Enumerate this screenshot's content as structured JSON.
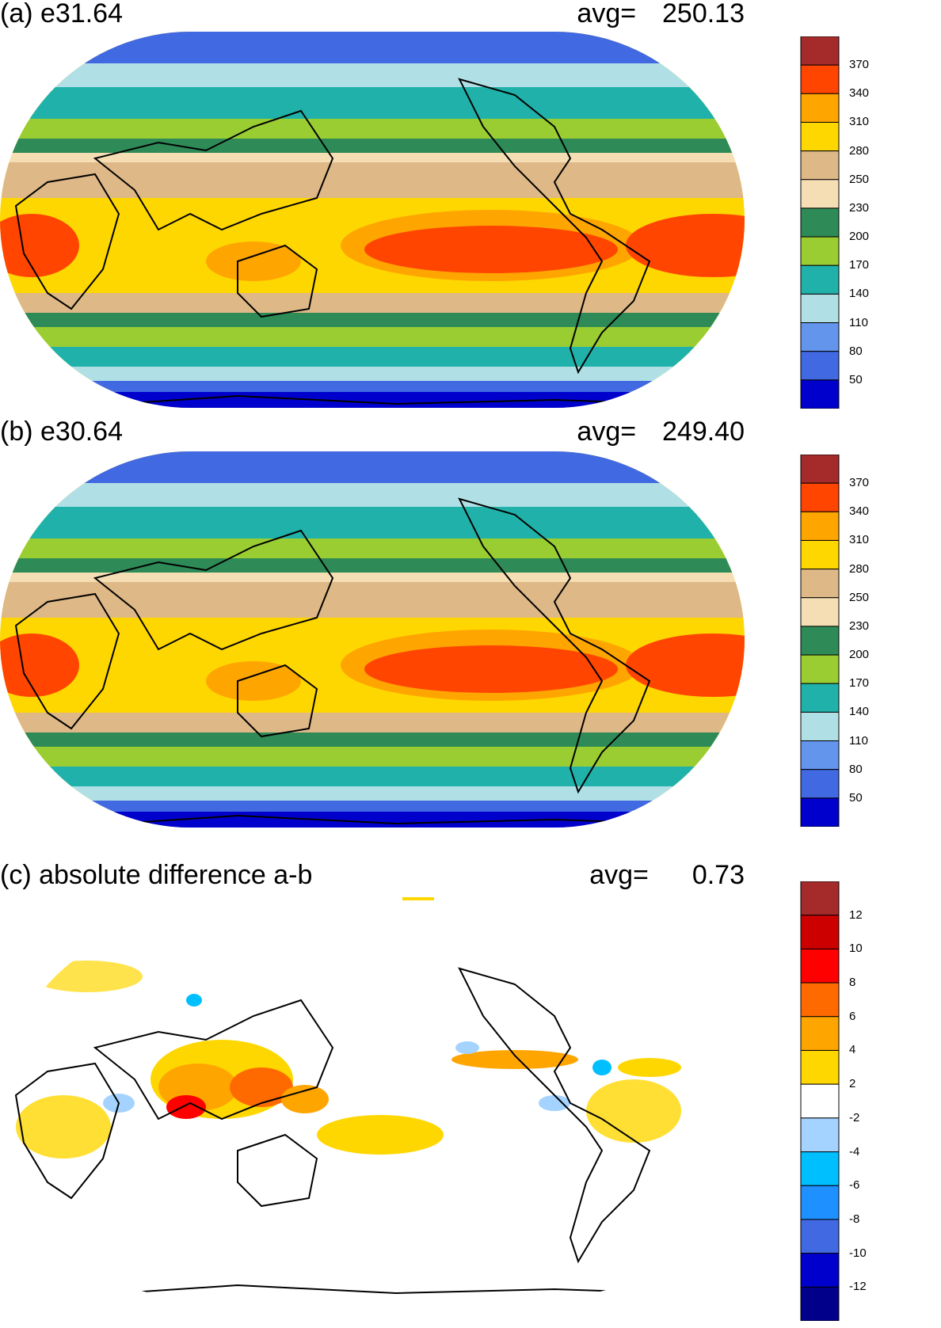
{
  "panels": [
    {
      "id": "a",
      "title": "(a) e31.64",
      "avg_label": "avg=",
      "avg_value": "250.13",
      "colorbar": {
        "labels": [
          "370",
          "340",
          "310",
          "280",
          "250",
          "230",
          "200",
          "170",
          "140",
          "110",
          "80",
          "50"
        ],
        "colors": [
          "#a52a2a",
          "#ff4500",
          "#ffa500",
          "#ffd700",
          "#deb887",
          "#f5deb3",
          "#2e8b57",
          "#9acd32",
          "#20b2aa",
          "#b0e0e6",
          "#6495ed",
          "#4169e1",
          "#0000cd"
        ]
      }
    },
    {
      "id": "b",
      "title": "(b) e30.64",
      "avg_label": "avg=",
      "avg_value": "249.40",
      "colorbar": {
        "labels": [
          "370",
          "340",
          "310",
          "280",
          "250",
          "230",
          "200",
          "170",
          "140",
          "110",
          "80",
          "50"
        ],
        "colors": [
          "#a52a2a",
          "#ff4500",
          "#ffa500",
          "#ffd700",
          "#deb887",
          "#f5deb3",
          "#2e8b57",
          "#9acd32",
          "#20b2aa",
          "#b0e0e6",
          "#6495ed",
          "#4169e1",
          "#0000cd"
        ]
      }
    },
    {
      "id": "c",
      "title": "(c) absolute difference a-b",
      "avg_label": "avg=",
      "avg_value": "0.73",
      "colorbar": {
        "labels": [
          "12",
          "10",
          "8",
          "6",
          "4",
          "2",
          "-2",
          "-4",
          "-6",
          "-8",
          "-10",
          "-12"
        ],
        "colors": [
          "#a52a2a",
          "#cd0000",
          "#ff0000",
          "#ff6a00",
          "#ffa500",
          "#ffd700",
          "#ffffff",
          "#a4d3ff",
          "#00bfff",
          "#1e90ff",
          "#4169e1",
          "#0000cd",
          "#00008b"
        ]
      }
    }
  ]
}
